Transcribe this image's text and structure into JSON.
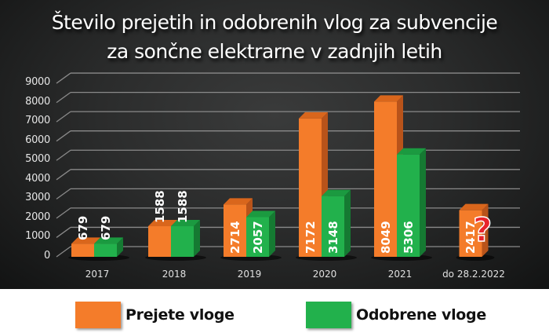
{
  "chart_data": {
    "type": "bar",
    "title": "Število prejetih in odobrenih vlog za subvencije za sončne elektrarne v zadnjih letih",
    "title_lines": [
      "Število prejetih in odobrenih vlog za subvencije",
      "za sončne elektrarne v zadnjih letih"
    ],
    "categories": [
      "2017",
      "2018",
      "2019",
      "2020",
      "2021",
      "do 28.2.2022"
    ],
    "series": [
      {
        "name": "Prejete vloge",
        "color": "#f47c2a",
        "values": [
          679,
          1588,
          2714,
          7172,
          8049,
          2417
        ]
      },
      {
        "name": "Odobrene vloge",
        "color": "#22b14c",
        "values": [
          679,
          1588,
          2057,
          3148,
          5306,
          null
        ]
      }
    ],
    "annotations": [
      "?"
    ],
    "yticks": [
      "0",
      "1000",
      "2000",
      "3000",
      "4000",
      "5000",
      "6000",
      "7000",
      "8000",
      "9000"
    ],
    "ylim": [
      0,
      9000
    ],
    "xlabel": "",
    "ylabel": "",
    "grid": true,
    "legend_position": "bottom",
    "style": "3d-column"
  }
}
